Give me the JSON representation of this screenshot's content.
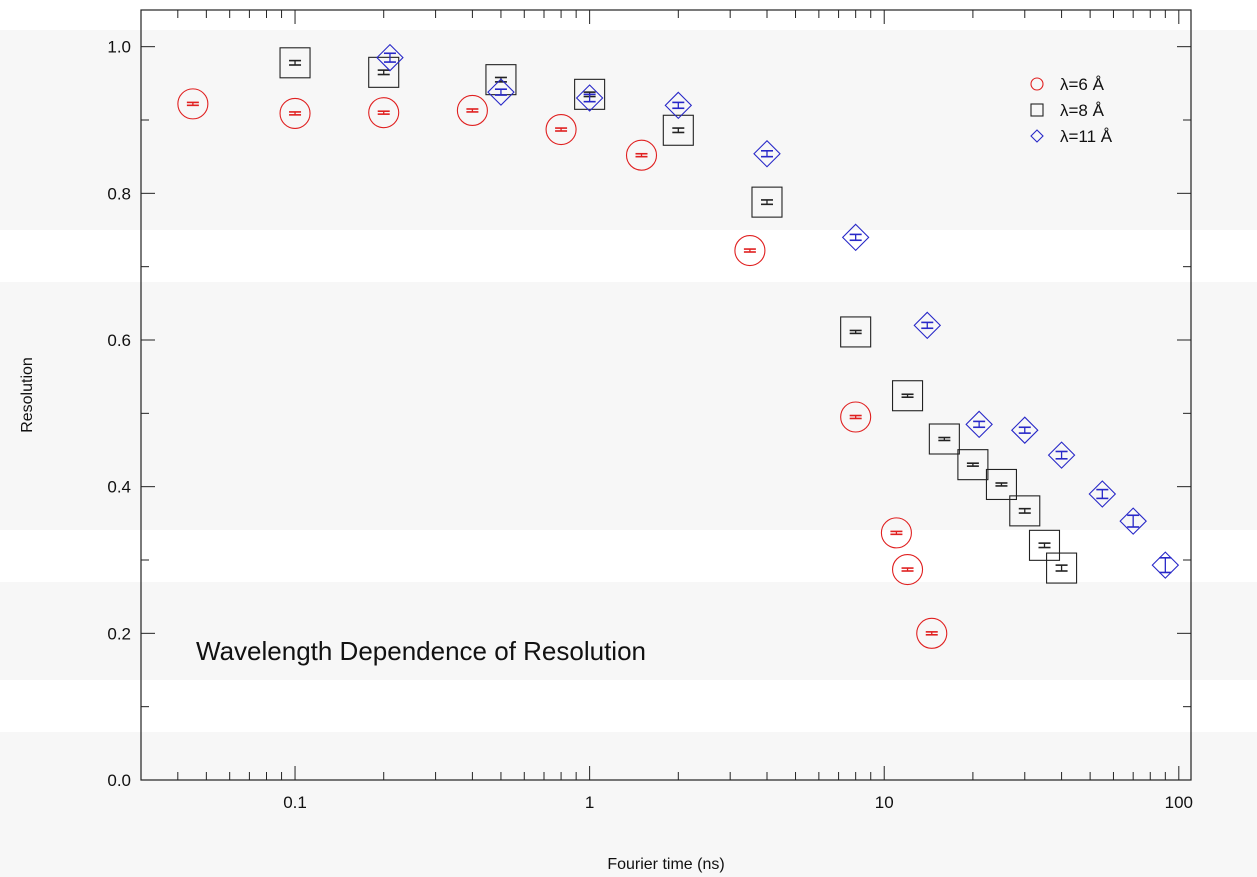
{
  "chart_data": {
    "type": "scatter",
    "xscale": "log",
    "xlim": [
      0.03,
      110
    ],
    "ylim": [
      0.0,
      1.05
    ],
    "xlabel": "Fourier time (ns)",
    "ylabel": "Resolution",
    "annotation": "Wavelength Dependence of Resolution",
    "x_ticks": [
      0.1,
      1,
      10,
      100
    ],
    "x_tick_labels": [
      "0.1",
      "1",
      "10",
      "100"
    ],
    "y_ticks": [
      0.0,
      0.2,
      0.4,
      0.6,
      0.8,
      1.0
    ],
    "y_tick_labels": [
      "0.0",
      "0.2",
      "0.4",
      "0.6",
      "0.8",
      "1.0"
    ],
    "legend_position": "top-right",
    "series": [
      {
        "name": "λ=6 Å",
        "marker": "circle",
        "color": "#e02020",
        "x": [
          0.045,
          0.1,
          0.2,
          0.4,
          0.8,
          1.5,
          3.5,
          8,
          11,
          12,
          14.5
        ],
        "y": [
          0.922,
          0.909,
          0.91,
          0.913,
          0.887,
          0.852,
          0.722,
          0.495,
          0.337,
          0.287,
          0.2
        ],
        "err": [
          0.002,
          0.002,
          0.002,
          0.002,
          0.002,
          0.002,
          0.002,
          0.002,
          0.002,
          0.002,
          0.002
        ]
      },
      {
        "name": "λ=8 Å",
        "marker": "square",
        "color": "#222222",
        "x": [
          0.1,
          0.2,
          0.5,
          1,
          2,
          4,
          8,
          12,
          16,
          20,
          25,
          30,
          35,
          40
        ],
        "y": [
          0.978,
          0.965,
          0.955,
          0.935,
          0.886,
          0.788,
          0.611,
          0.524,
          0.465,
          0.43,
          0.403,
          0.367,
          0.32,
          0.289
        ],
        "err": [
          0.003,
          0.003,
          0.003,
          0.003,
          0.003,
          0.003,
          0.002,
          0.002,
          0.002,
          0.002,
          0.002,
          0.003,
          0.003,
          0.004
        ]
      },
      {
        "name": "λ=11 Å",
        "marker": "diamond",
        "color": "#2828c8",
        "x": [
          0.21,
          0.5,
          1,
          2,
          4,
          8,
          14,
          21,
          30,
          40,
          55,
          70,
          90
        ],
        "y": [
          0.985,
          0.938,
          0.93,
          0.92,
          0.854,
          0.74,
          0.62,
          0.485,
          0.477,
          0.443,
          0.39,
          0.353,
          0.293
        ],
        "err": [
          0.006,
          0.004,
          0.005,
          0.004,
          0.004,
          0.004,
          0.004,
          0.004,
          0.004,
          0.005,
          0.006,
          0.008,
          0.01
        ]
      }
    ]
  }
}
